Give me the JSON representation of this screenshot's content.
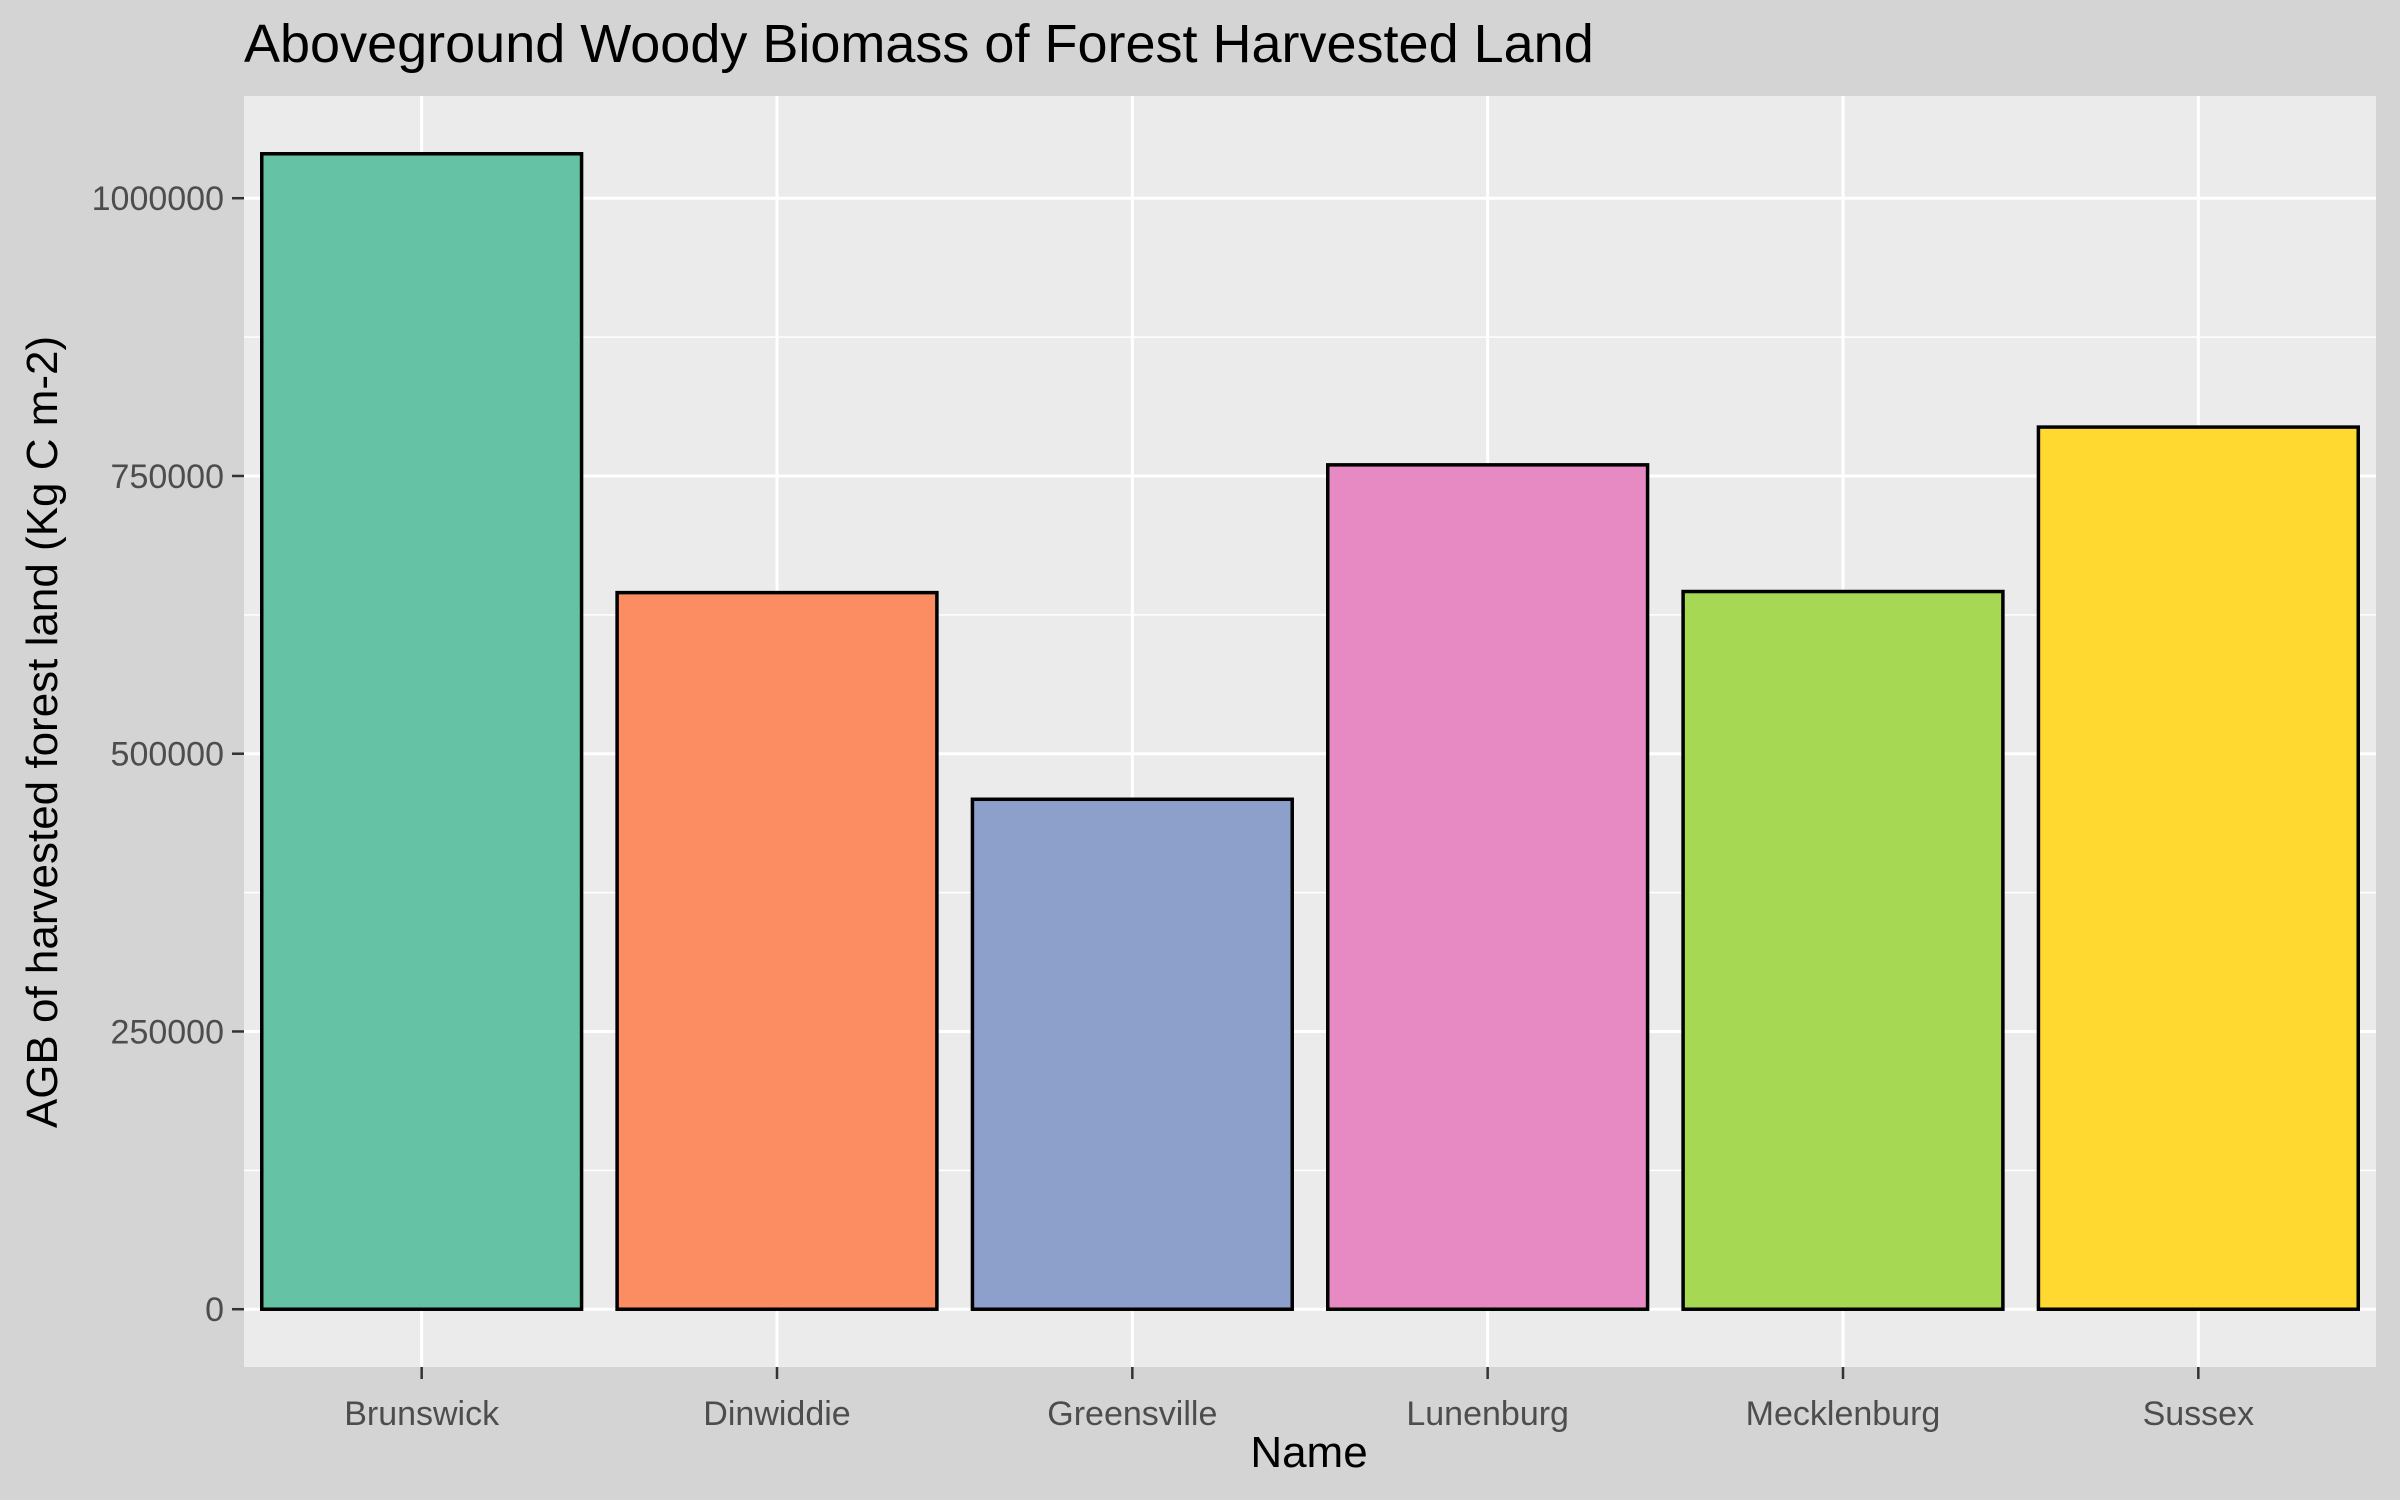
{
  "chart_data": {
    "type": "bar",
    "title": "Aboveground Woody Biomass of Forest Harvested Land",
    "xlabel": "Name",
    "ylabel": "AGB of harvested forest land (Kg C m-2)",
    "categories": [
      "Brunswick",
      "Dinwiddie",
      "Greensville",
      "Lunenburg",
      "Mecklenburg",
      "Sussex"
    ],
    "values": [
      1040000,
      645000,
      459000,
      760000,
      646000,
      794000
    ],
    "colors": [
      "#66c2a5",
      "#fc8d62",
      "#8da0cb",
      "#e78ac3",
      "#a6d854",
      "#ffd92f"
    ],
    "bar_outline_color": "#000000",
    "yticks": [
      0,
      250000,
      500000,
      750000,
      1000000
    ],
    "ytick_labels": [
      "0",
      "250000",
      "500000",
      "750000",
      "1000000"
    ],
    "ylim": [
      -52000,
      1092000
    ],
    "grid": true,
    "legend": "none",
    "panel_background": "#ebebeb",
    "plot_background": "#d4d4d4"
  }
}
